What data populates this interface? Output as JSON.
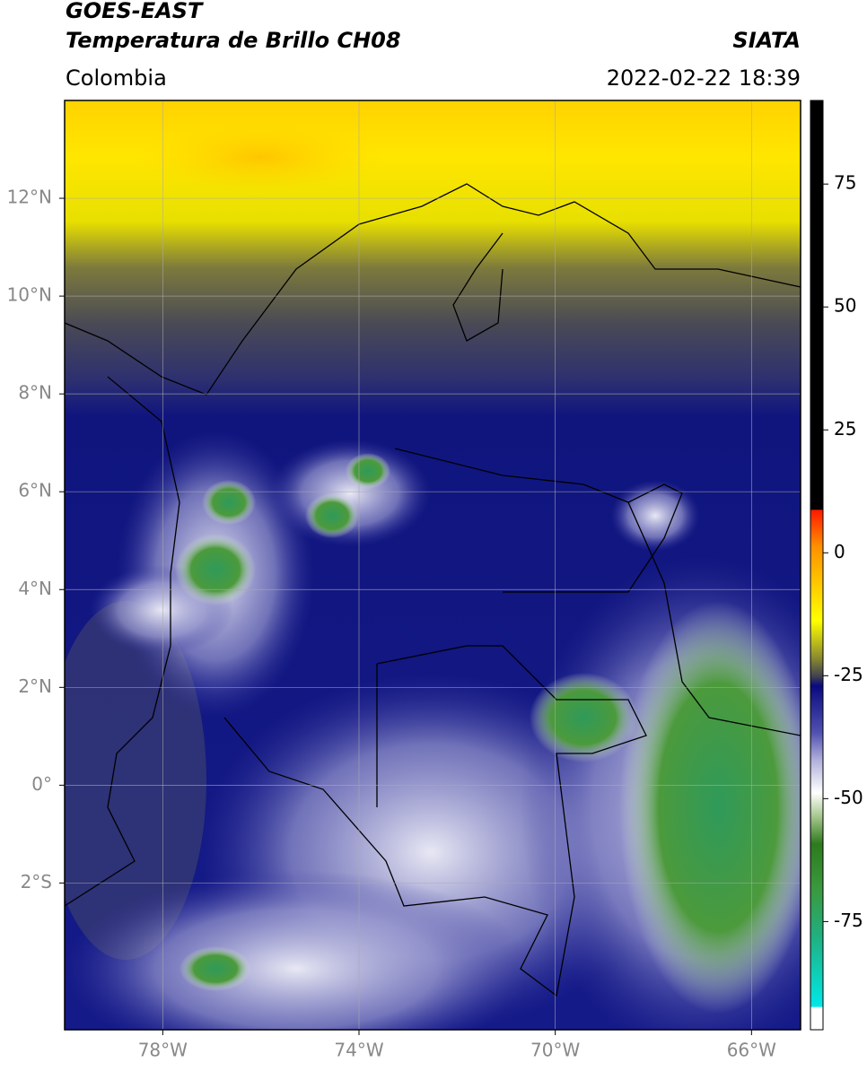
{
  "header": {
    "title": "GOES-EAST",
    "subtitle": "Temperatura de Brillo CH08",
    "region": "Colombia",
    "source": "SIATA",
    "datetime": "2022-02-22 18:39"
  },
  "map": {
    "xlim": [
      -80,
      -65
    ],
    "ylim": [
      -5,
      14
    ],
    "xticks": [
      {
        "value": -78,
        "label": "78°W"
      },
      {
        "value": -74,
        "label": "74°W"
      },
      {
        "value": -70,
        "label": "70°W"
      },
      {
        "value": -66,
        "label": "66°W"
      }
    ],
    "yticks": [
      {
        "value": 12,
        "label": "12°N"
      },
      {
        "value": 10,
        "label": "10°N"
      },
      {
        "value": 8,
        "label": "8°N"
      },
      {
        "value": 6,
        "label": "6°N"
      },
      {
        "value": 4,
        "label": "4°N"
      },
      {
        "value": 2,
        "label": "2°N"
      },
      {
        "value": 0,
        "label": "0°"
      },
      {
        "value": -2,
        "label": "2°S"
      }
    ],
    "grid": true
  },
  "colorbar": {
    "lim": [
      -97,
      92
    ],
    "ticks": [
      75,
      50,
      25,
      0,
      -25,
      -50,
      -75
    ]
  }
}
